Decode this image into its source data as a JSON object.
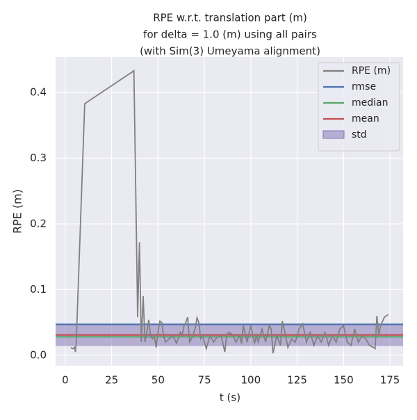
{
  "chart_data": {
    "type": "line",
    "title": [
      "RPE w.r.t. translation part (m)",
      "for delta = 1.0 (m) using all pairs",
      "(with Sim(3) Umeyama alignment)"
    ],
    "xlabel": "t (s)",
    "ylabel": "RPE (m)",
    "xlim": [
      -5.2,
      182.1
    ],
    "ylim": [
      -0.016,
      0.454
    ],
    "xticks": [
      0,
      25,
      50,
      75,
      100,
      125,
      150,
      175
    ],
    "yticks": [
      {
        "value": 0,
        "label": "0.0"
      },
      0.1,
      0.2,
      0.3,
      0.4
    ],
    "grid": true,
    "legend": "upper right",
    "series": [
      {
        "name": "RPE (m)",
        "color": "#808080",
        "style": "line",
        "x": [
          3,
          4,
          5,
          5.5,
          6,
          10.5,
          37,
          38,
          39,
          40,
          41,
          42,
          43,
          44,
          45,
          46,
          47,
          48,
          49,
          50,
          51,
          52,
          53,
          54,
          56,
          58,
          60,
          62,
          63,
          64,
          65,
          66,
          67,
          68,
          70,
          71,
          72,
          73,
          74,
          76,
          78,
          80,
          82,
          84,
          86,
          87,
          88,
          90,
          92,
          94,
          95,
          96,
          98,
          100,
          102,
          103,
          104,
          106,
          108,
          110,
          111,
          112,
          114,
          116,
          117,
          118,
          120,
          122,
          124,
          126,
          128,
          130,
          132,
          134,
          136,
          138,
          140,
          142,
          144,
          146,
          148,
          150,
          152,
          154,
          156,
          158,
          160,
          162,
          164,
          166,
          167,
          168,
          169,
          170,
          172,
          174
        ],
        "values": [
          0.012,
          0.01,
          0.012,
          0.005,
          0.025,
          0.383,
          0.433,
          0.25,
          0.058,
          0.172,
          0.02,
          0.09,
          0.02,
          0.035,
          0.054,
          0.03,
          0.025,
          0.03,
          0.012,
          0.035,
          0.052,
          0.05,
          0.03,
          0.02,
          0.025,
          0.03,
          0.018,
          0.035,
          0.03,
          0.045,
          0.05,
          0.058,
          0.02,
          0.025,
          0.04,
          0.057,
          0.05,
          0.025,
          0.03,
          0.01,
          0.03,
          0.02,
          0.028,
          0.03,
          0.005,
          0.03,
          0.035,
          0.032,
          0.02,
          0.03,
          0.018,
          0.045,
          0.02,
          0.045,
          0.018,
          0.03,
          0.02,
          0.04,
          0.02,
          0.045,
          0.04,
          0.003,
          0.03,
          0.015,
          0.052,
          0.04,
          0.012,
          0.025,
          0.02,
          0.04,
          0.048,
          0.02,
          0.035,
          0.015,
          0.03,
          0.02,
          0.035,
          0.015,
          0.03,
          0.02,
          0.04,
          0.045,
          0.02,
          0.015,
          0.04,
          0.02,
          0.03,
          0.025,
          0.015,
          0.012,
          0.01,
          0.06,
          0.03,
          0.045,
          0.058,
          0.062
        ]
      },
      {
        "name": "rmse",
        "color": "#4c72b0",
        "style": "hline",
        "value": 0.047
      },
      {
        "name": "median",
        "color": "#55a868",
        "style": "hline",
        "value": 0.028
      },
      {
        "name": "mean",
        "color": "#c44e52",
        "style": "hline",
        "value": 0.031
      },
      {
        "name": "std",
        "color": "#8172b2",
        "style": "band",
        "value": 0.017
      }
    ]
  }
}
